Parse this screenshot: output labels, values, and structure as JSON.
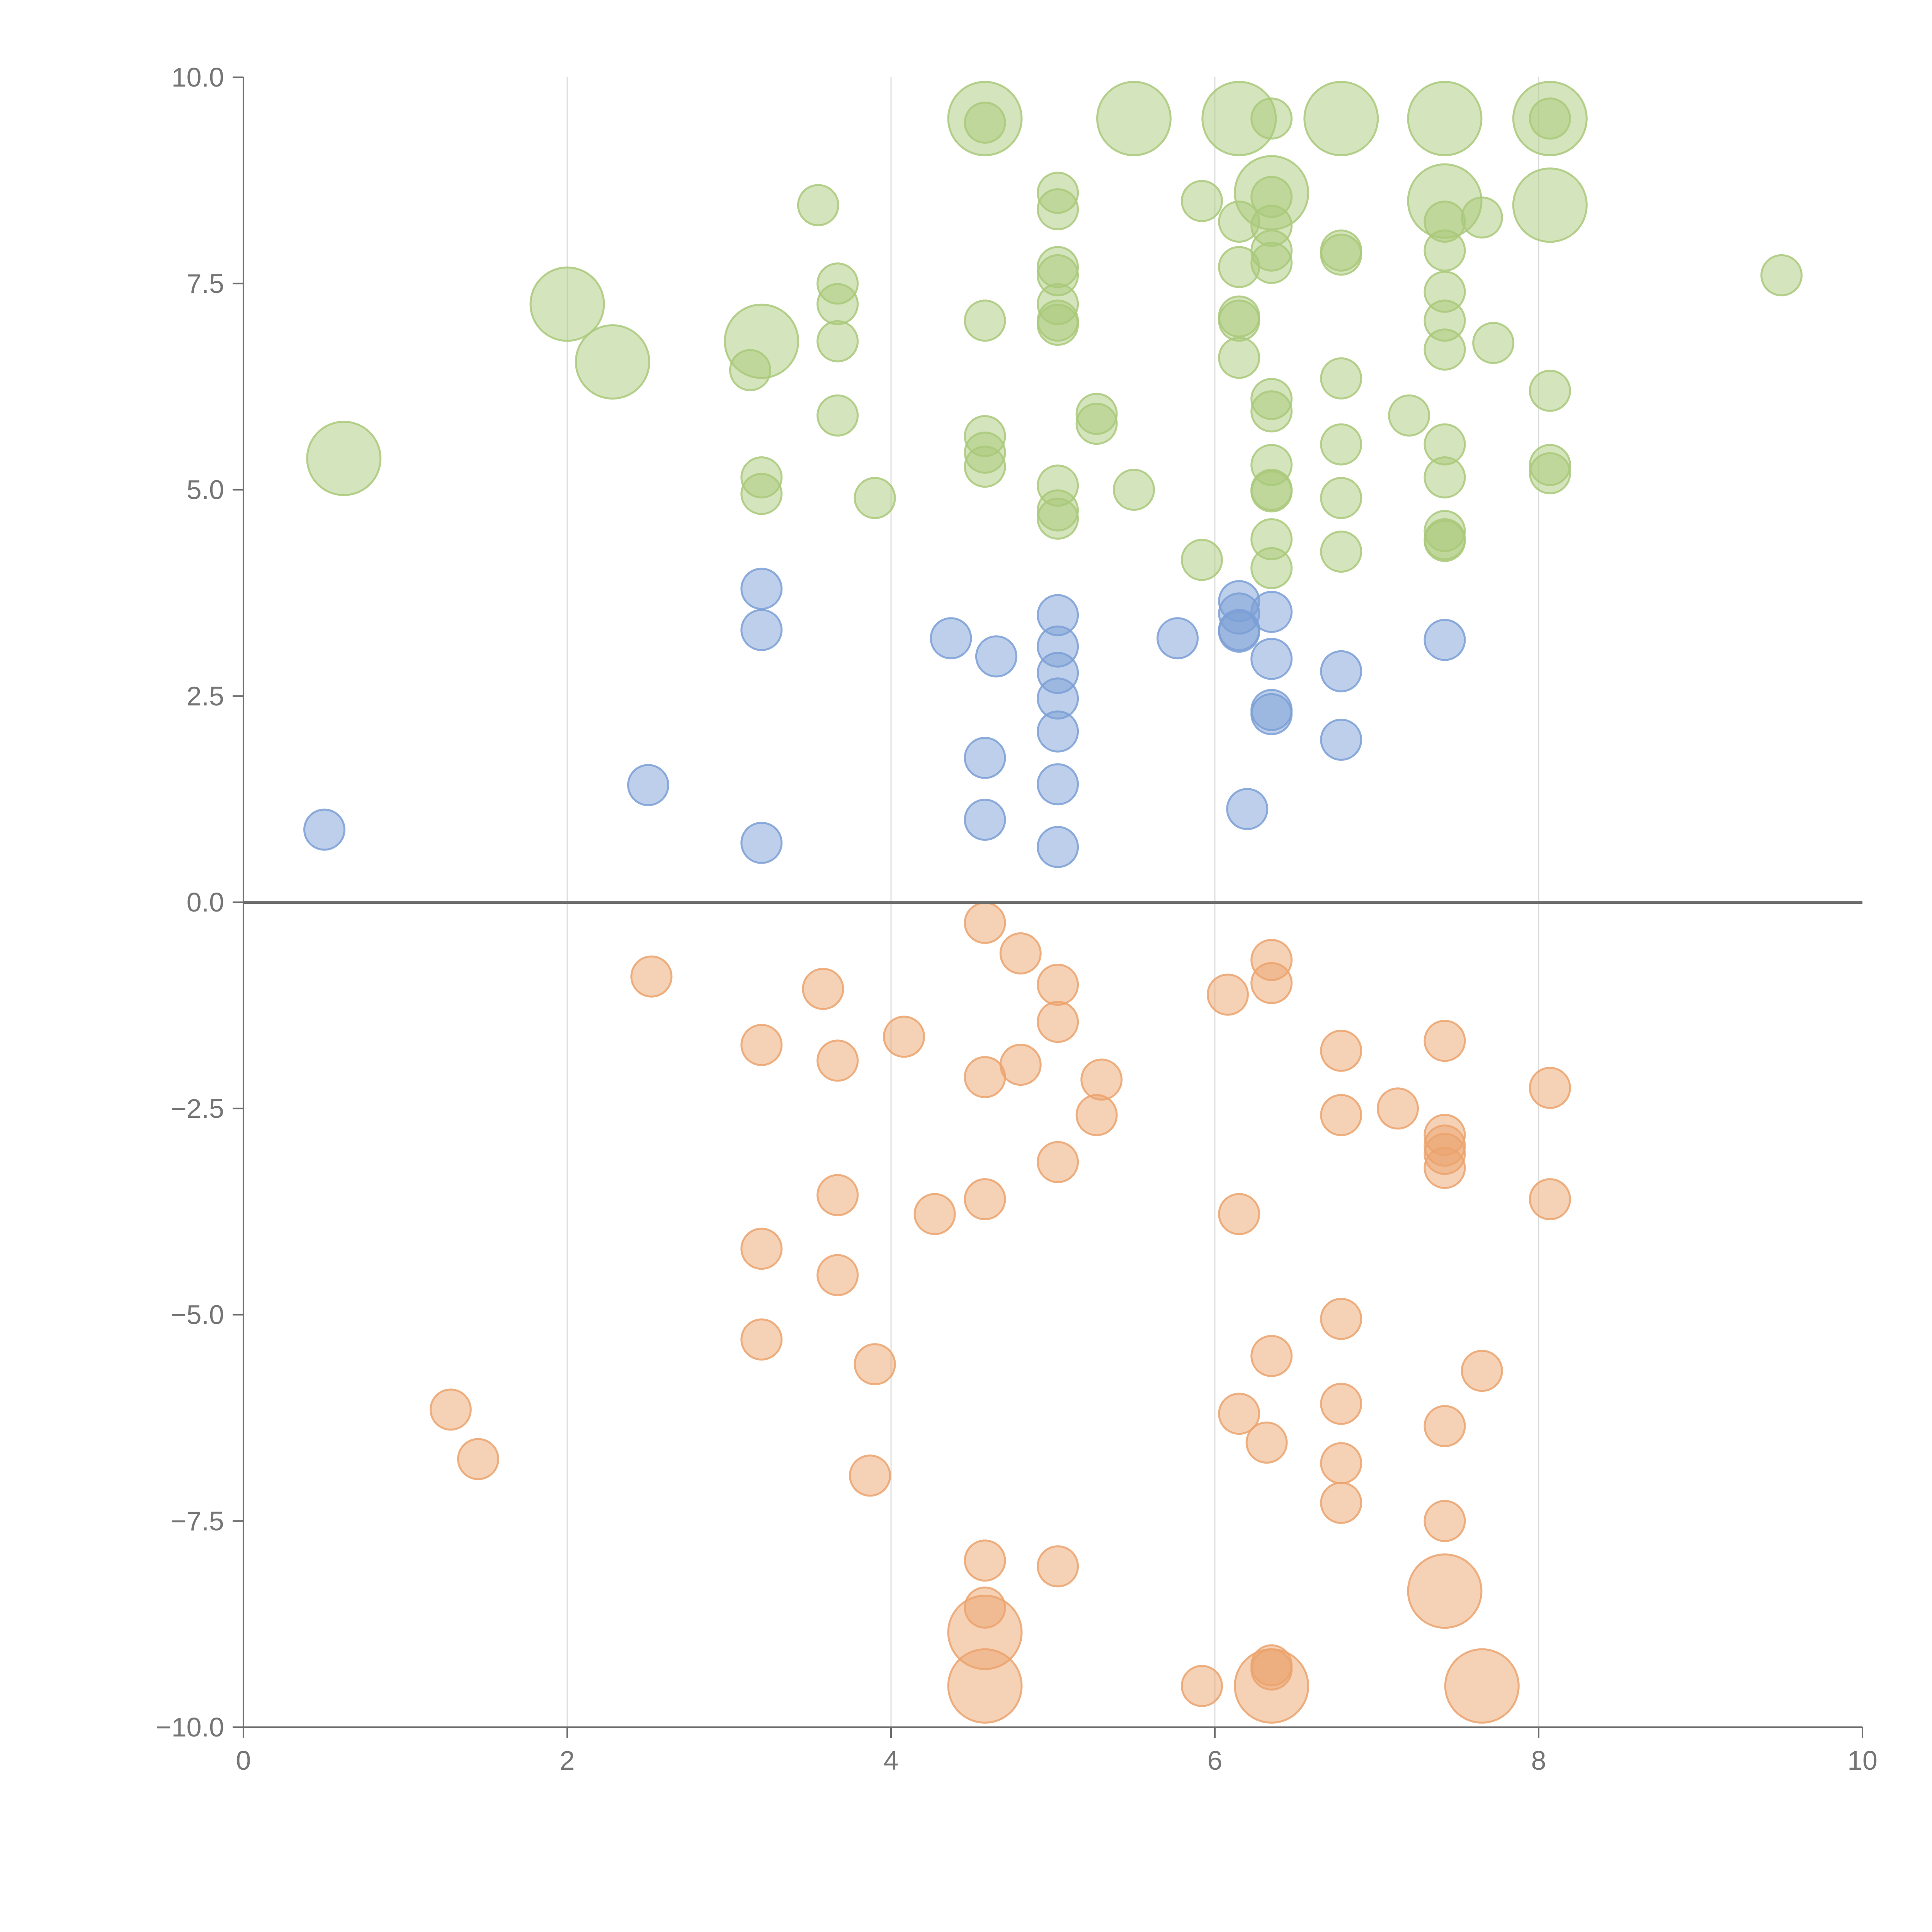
{
  "chart_data": {
    "type": "scatter",
    "title": "",
    "xlabel": "",
    "ylabel": "",
    "xlim": [
      0,
      10
    ],
    "ylim": [
      -10,
      10
    ],
    "grid": {
      "x": true,
      "y": false
    },
    "zero_line": true,
    "x_ticks": [
      "0",
      "2",
      "4",
      "6",
      "8",
      "10"
    ],
    "y_ticks": [
      "10.0",
      "7.5",
      "5.0",
      "2.5",
      "0.0",
      "−2.5",
      "−5.0",
      "−7.5",
      "−10.0"
    ],
    "x_tick_values": [
      0,
      2,
      4,
      6,
      8,
      10
    ],
    "y_tick_values": [
      10,
      7.5,
      5,
      2.5,
      0,
      -2.5,
      -5,
      -7.5,
      -10
    ],
    "colors": {
      "green": "#a9c97a",
      "blue": "#7b9fd6",
      "orange": "#eba36d"
    },
    "series": [
      {
        "color": "#a9c97a",
        "points": [
          [
            4.58,
            9.5,
            1
          ],
          [
            5.5,
            9.5,
            1
          ],
          [
            6.15,
            9.5,
            1
          ],
          [
            6.78,
            9.5,
            1
          ],
          [
            7.42,
            9.5,
            1
          ],
          [
            8.07,
            9.5,
            1
          ],
          [
            4.58,
            9.45,
            0
          ],
          [
            6.35,
            9.5,
            0
          ],
          [
            8.07,
            9.5,
            0
          ],
          [
            6.35,
            8.6,
            1
          ],
          [
            7.42,
            8.5,
            1
          ],
          [
            8.07,
            8.45,
            1
          ],
          [
            2.0,
            7.25,
            1
          ],
          [
            2.28,
            6.55,
            1
          ],
          [
            3.2,
            6.8,
            1
          ],
          [
            0.62,
            5.38,
            1
          ],
          [
            3.55,
            8.45,
            0
          ],
          [
            5.03,
            8.6,
            0
          ],
          [
            5.03,
            8.4,
            0
          ],
          [
            5.92,
            8.5,
            0
          ],
          [
            6.35,
            8.55,
            0
          ],
          [
            6.15,
            8.25,
            0
          ],
          [
            6.35,
            8.2,
            0
          ],
          [
            7.42,
            8.25,
            0
          ],
          [
            7.65,
            8.3,
            0
          ],
          [
            6.35,
            7.9,
            0
          ],
          [
            6.35,
            7.75,
            0
          ],
          [
            6.78,
            7.9,
            0
          ],
          [
            6.78,
            7.85,
            0
          ],
          [
            7.42,
            7.9,
            0
          ],
          [
            9.5,
            7.6,
            0
          ],
          [
            3.67,
            7.5,
            0
          ],
          [
            3.67,
            7.25,
            0
          ],
          [
            5.03,
            7.7,
            0
          ],
          [
            5.03,
            7.6,
            0
          ],
          [
            6.15,
            7.7,
            0
          ],
          [
            5.03,
            7.25,
            0
          ],
          [
            4.58,
            7.05,
            0
          ],
          [
            5.03,
            7.05,
            0
          ],
          [
            5.03,
            7.0,
            0
          ],
          [
            6.15,
            7.1,
            0
          ],
          [
            6.15,
            7.05,
            0
          ],
          [
            7.42,
            7.4,
            0
          ],
          [
            7.42,
            7.05,
            0
          ],
          [
            3.67,
            6.8,
            0
          ],
          [
            7.72,
            6.78,
            0
          ],
          [
            7.42,
            6.7,
            0
          ],
          [
            3.13,
            6.45,
            0
          ],
          [
            6.15,
            6.6,
            0
          ],
          [
            6.78,
            6.35,
            0
          ],
          [
            8.07,
            6.2,
            0
          ],
          [
            6.35,
            6.1,
            0
          ],
          [
            6.35,
            5.95,
            0
          ],
          [
            3.67,
            5.9,
            0
          ],
          [
            5.27,
            5.92,
            0
          ],
          [
            5.27,
            5.8,
            0
          ],
          [
            7.2,
            5.9,
            0
          ],
          [
            4.58,
            5.65,
            0
          ],
          [
            4.58,
            5.45,
            0
          ],
          [
            4.58,
            5.28,
            0
          ],
          [
            6.78,
            5.55,
            0
          ],
          [
            7.42,
            5.55,
            0
          ],
          [
            6.35,
            5.3,
            0
          ],
          [
            8.07,
            5.3,
            0
          ],
          [
            8.07,
            5.2,
            0
          ],
          [
            3.2,
            5.15,
            0
          ],
          [
            7.42,
            5.15,
            0
          ],
          [
            5.03,
            5.05,
            0
          ],
          [
            5.5,
            5.0,
            0
          ],
          [
            6.35,
            5.0,
            0
          ],
          [
            6.35,
            4.98,
            0
          ],
          [
            3.2,
            4.95,
            0
          ],
          [
            3.9,
            4.9,
            0
          ],
          [
            6.78,
            4.9,
            0
          ],
          [
            5.03,
            4.75,
            0
          ],
          [
            5.03,
            4.65,
            0
          ],
          [
            7.42,
            4.5,
            0
          ],
          [
            7.42,
            4.4,
            0
          ],
          [
            7.42,
            4.38,
            0
          ],
          [
            6.35,
            4.4,
            0
          ],
          [
            6.78,
            4.25,
            0
          ],
          [
            5.92,
            4.15,
            0
          ],
          [
            6.35,
            4.05,
            0
          ]
        ]
      },
      {
        "color": "#7b9fd6",
        "points": [
          [
            3.2,
            3.8,
            0
          ],
          [
            6.15,
            3.65,
            0
          ],
          [
            6.15,
            3.5,
            0
          ],
          [
            6.35,
            3.52,
            0
          ],
          [
            5.03,
            3.48,
            0
          ],
          [
            3.2,
            3.3,
            0
          ],
          [
            6.15,
            3.3,
            0
          ],
          [
            6.15,
            3.28,
            0
          ],
          [
            4.37,
            3.2,
            0
          ],
          [
            5.77,
            3.2,
            0
          ],
          [
            7.42,
            3.18,
            0
          ],
          [
            5.03,
            3.1,
            0
          ],
          [
            4.65,
            2.98,
            0
          ],
          [
            6.35,
            2.95,
            0
          ],
          [
            6.78,
            2.8,
            0
          ],
          [
            5.03,
            2.78,
            0
          ],
          [
            5.03,
            2.47,
            0
          ],
          [
            6.35,
            2.33,
            0
          ],
          [
            6.35,
            2.28,
            0
          ],
          [
            5.03,
            2.07,
            0
          ],
          [
            6.78,
            1.97,
            0
          ],
          [
            4.58,
            1.75,
            0
          ],
          [
            2.5,
            1.42,
            0
          ],
          [
            5.03,
            1.43,
            0
          ],
          [
            6.2,
            1.13,
            0
          ],
          [
            4.58,
            1.0,
            0
          ],
          [
            0.5,
            0.88,
            0
          ],
          [
            3.2,
            0.72,
            0
          ],
          [
            5.03,
            0.67,
            0
          ]
        ]
      },
      {
        "color": "#eba36d",
        "points": [
          [
            4.58,
            -0.25,
            0
          ],
          [
            4.8,
            -0.62,
            0
          ],
          [
            6.35,
            -0.7,
            0
          ],
          [
            2.52,
            -0.9,
            0
          ],
          [
            6.35,
            -0.98,
            0
          ],
          [
            5.03,
            -1.0,
            0
          ],
          [
            3.58,
            -1.05,
            0
          ],
          [
            6.08,
            -1.12,
            0
          ],
          [
            5.03,
            -1.45,
            0
          ],
          [
            4.08,
            -1.63,
            0
          ],
          [
            7.42,
            -1.68,
            0
          ],
          [
            3.2,
            -1.73,
            0
          ],
          [
            6.78,
            -1.8,
            0
          ],
          [
            3.67,
            -1.92,
            0
          ],
          [
            4.8,
            -1.97,
            0
          ],
          [
            4.58,
            -2.12,
            0
          ],
          [
            5.3,
            -2.15,
            0
          ],
          [
            8.07,
            -2.25,
            0
          ],
          [
            7.13,
            -2.5,
            0
          ],
          [
            5.27,
            -2.58,
            0
          ],
          [
            6.78,
            -2.58,
            0
          ],
          [
            7.42,
            -2.82,
            0
          ],
          [
            7.42,
            -2.95,
            0
          ],
          [
            7.42,
            -3.05,
            0
          ],
          [
            5.03,
            -3.15,
            0
          ],
          [
            7.42,
            -3.22,
            0
          ],
          [
            3.67,
            -3.55,
            0
          ],
          [
            4.58,
            -3.6,
            0
          ],
          [
            8.07,
            -3.6,
            0
          ],
          [
            4.27,
            -3.78,
            0
          ],
          [
            6.15,
            -3.78,
            0
          ],
          [
            3.2,
            -4.2,
            0
          ],
          [
            3.67,
            -4.52,
            0
          ],
          [
            6.78,
            -5.05,
            0
          ],
          [
            3.2,
            -5.3,
            0
          ],
          [
            6.35,
            -5.5,
            0
          ],
          [
            3.9,
            -5.6,
            0
          ],
          [
            7.65,
            -5.68,
            0
          ],
          [
            6.78,
            -6.08,
            0
          ],
          [
            1.28,
            -6.15,
            0
          ],
          [
            6.15,
            -6.2,
            0
          ],
          [
            7.42,
            -6.35,
            0
          ],
          [
            6.32,
            -6.55,
            0
          ],
          [
            1.45,
            -6.75,
            0
          ],
          [
            6.78,
            -6.8,
            0
          ],
          [
            3.87,
            -6.95,
            0
          ],
          [
            6.78,
            -7.28,
            0
          ],
          [
            7.42,
            -7.5,
            0
          ],
          [
            4.58,
            -7.98,
            0
          ],
          [
            5.03,
            -8.05,
            0
          ],
          [
            7.42,
            -8.35,
            1
          ],
          [
            4.58,
            -8.55,
            0
          ],
          [
            4.58,
            -8.85,
            1
          ],
          [
            6.35,
            -9.25,
            0
          ],
          [
            6.35,
            -9.3,
            0
          ],
          [
            4.58,
            -9.5,
            1
          ],
          [
            5.92,
            -9.5,
            0
          ],
          [
            6.35,
            -9.5,
            1
          ],
          [
            7.65,
            -9.5,
            1
          ]
        ]
      }
    ]
  }
}
